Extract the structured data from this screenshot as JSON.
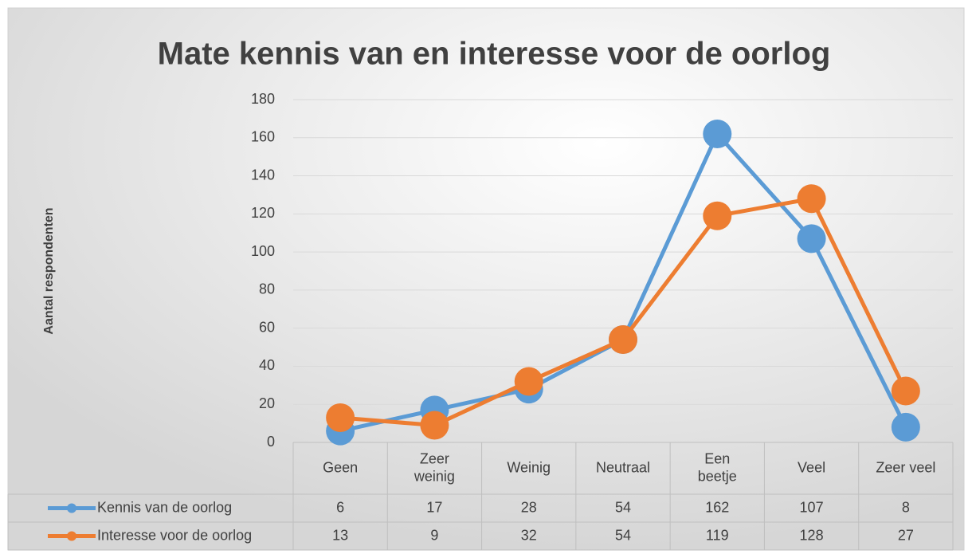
{
  "chart_data": {
    "type": "line",
    "title": "Mate kennis van en interesse voor de oorlog",
    "y_label": "Aantal respondenten",
    "categories": [
      "Geen",
      "Zeer weinig",
      "Weinig",
      "Neutraal",
      "Een beetje",
      "Veel",
      "Zeer veel"
    ],
    "series": [
      {
        "name": "Kennis van de oorlog",
        "color": "#5b9bd5",
        "values": [
          6,
          17,
          28,
          54,
          162,
          107,
          8
        ]
      },
      {
        "name": "Interesse voor de oorlog",
        "color": "#ed7d31",
        "values": [
          13,
          9,
          32,
          54,
          119,
          128,
          27
        ]
      }
    ],
    "ylim": [
      0,
      180
    ],
    "yticks": [
      0,
      20,
      40,
      60,
      80,
      100,
      120,
      140,
      160,
      180
    ],
    "grid": true,
    "data_table": true
  }
}
